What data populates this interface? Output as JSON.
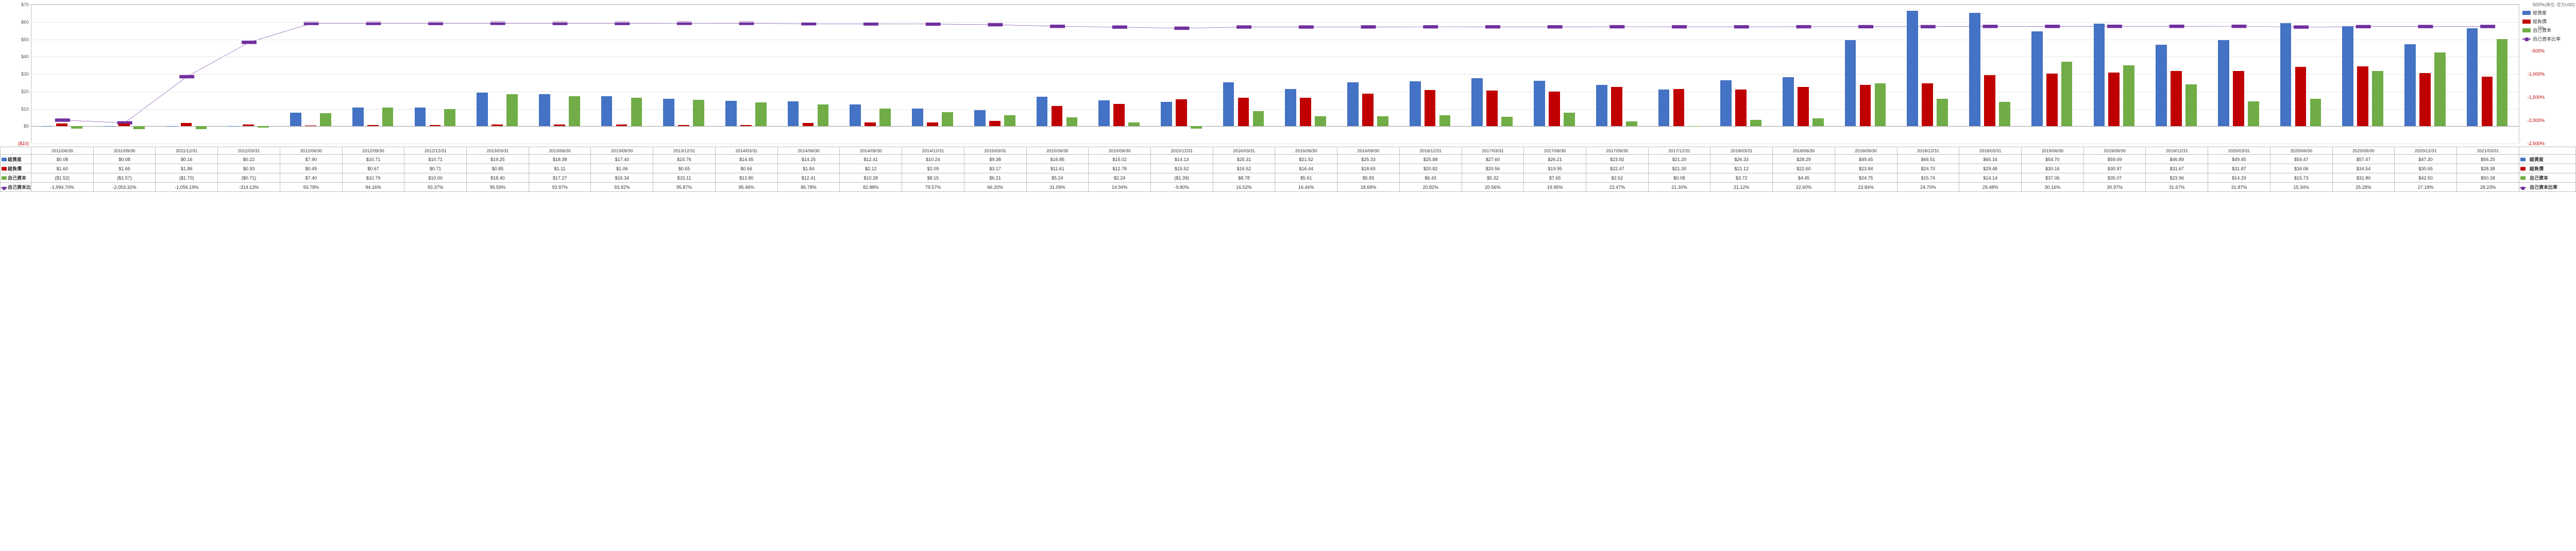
{
  "unit_note": "(単位: 百万USD)",
  "chart": {
    "type": "bar+line",
    "left_axis": {
      "label_prefix": "$",
      "min": -10,
      "max": 70,
      "step": 10,
      "ticks": [
        {
          "v": -10,
          "label": "($10)",
          "color": "#c00000"
        },
        {
          "v": 0,
          "label": "$0",
          "color": "#595959"
        },
        {
          "v": 10,
          "label": "$10",
          "color": "#595959"
        },
        {
          "v": 20,
          "label": "$20",
          "color": "#595959"
        },
        {
          "v": 30,
          "label": "$30",
          "color": "#595959"
        },
        {
          "v": 40,
          "label": "$40",
          "color": "#595959"
        },
        {
          "v": 50,
          "label": "$50",
          "color": "#595959"
        },
        {
          "v": 60,
          "label": "$60",
          "color": "#595959"
        },
        {
          "v": 70,
          "label": "$70",
          "color": "#595959"
        }
      ]
    },
    "right_axis": {
      "min": -2500,
      "max": 500,
      "step": 500,
      "ticks": [
        {
          "v": -2500,
          "label": "-2,500%",
          "color": "#c00000"
        },
        {
          "v": -2000,
          "label": "-2,000%",
          "color": "#c00000"
        },
        {
          "v": -1500,
          "label": "-1,500%",
          "color": "#c00000"
        },
        {
          "v": -1000,
          "label": "-1,000%",
          "color": "#c00000"
        },
        {
          "v": -500,
          "label": "-500%",
          "color": "#c00000"
        },
        {
          "v": 0,
          "label": "0%",
          "color": "#595959"
        },
        {
          "v": 500,
          "label": "500%",
          "color": "#595959"
        }
      ]
    },
    "background": "#ffffff",
    "grid_color": "#e6e6e6",
    "series_colors": {
      "total_assets": "#4472c4",
      "total_liabilities": "#c00000",
      "equity": "#70ad47",
      "equity_ratio": "#7030a0"
    },
    "series_labels": {
      "total_assets": "総資産",
      "total_liabilities": "総負債",
      "equity": "自己資本",
      "equity_ratio": "自己資本比率"
    },
    "categories": [
      "2011/06/30",
      "2011/09/30",
      "2011/12/31",
      "2012/03/31",
      "2012/06/30",
      "2012/09/30",
      "2012/12/31",
      "2013/03/31",
      "2013/06/30",
      "2013/09/30",
      "2013/12/31",
      "2014/03/31",
      "2014/06/30",
      "2014/09/30",
      "2014/12/31",
      "2015/03/31",
      "2015/06/30",
      "2015/09/30",
      "2015/12/31",
      "2016/03/31",
      "2016/06/30",
      "2016/09/30",
      "2016/12/31",
      "2017/03/31",
      "2017/06/30",
      "2017/09/30",
      "2017/12/31",
      "2018/03/31",
      "2018/06/30",
      "2018/09/30",
      "2018/12/31",
      "2019/03/31",
      "2019/06/30",
      "2019/09/30",
      "2019/12/31",
      "2020/03/31",
      "2020/06/30",
      "2020/09/30",
      "2020/12/31",
      "2021/03/31"
    ],
    "ratio_labels": [
      "-1,994.70%",
      "-2,053.32%",
      "-1,056.19%",
      "-314.13%",
      "93.78%",
      "94.16%",
      "93.37%",
      "95.59%",
      "93.97%",
      "93.92%",
      "95.87%",
      "95.46%",
      "86.78%",
      "82.88%",
      "79.57%",
      "66.20%",
      "31.09%",
      "14.94%",
      "-9.80%",
      "16.52%",
      "16.44%",
      "18.69%",
      "20.82%",
      "20.56%",
      "19.95%",
      "22.47%",
      "21.30%",
      "21.12%",
      "22.60%",
      "23.84%",
      "24.70%",
      "29.48%",
      "30.16%",
      "30.97%",
      "31.67%",
      "31.87%",
      "15.34%",
      "25.28%",
      "27.18%",
      "28.23%"
    ],
    "data": [
      {
        "asset": 0.08,
        "liab": 1.6,
        "equity": -1.52,
        "ratio": -1994.7
      },
      {
        "asset": 0.08,
        "liab": 1.65,
        "equity": -1.57,
        "ratio": -2053.32
      },
      {
        "asset": 0.16,
        "liab": 1.86,
        "equity": -1.7,
        "ratio": -1056.19
      },
      {
        "asset": 0.22,
        "liab": 0.93,
        "equity": -0.71,
        "ratio": -314.13
      },
      {
        "asset": 7.9,
        "liab": 0.49,
        "equity": 7.4,
        "ratio": 93.78
      },
      {
        "asset": 10.71,
        "liab": 0.67,
        "equity": 10.79,
        "ratio": 94.16
      },
      {
        "asset": 10.71,
        "liab": 0.71,
        "equity": 10.0,
        "ratio": 93.37
      },
      {
        "asset": 19.25,
        "liab": 0.85,
        "equity": 18.4,
        "ratio": 95.59
      },
      {
        "asset": 18.38,
        "liab": 1.11,
        "equity": 17.27,
        "ratio": 93.97
      },
      {
        "asset": 17.4,
        "liab": 1.06,
        "equity": 16.34,
        "ratio": 93.92
      },
      {
        "asset": 15.76,
        "liab": 0.65,
        "equity": 15.11,
        "ratio": 95.87
      },
      {
        "asset": 14.45,
        "liab": 0.66,
        "equity": 13.8,
        "ratio": 95.46
      },
      {
        "asset": 14.25,
        "liab": 1.84,
        "equity": 12.41,
        "ratio": 86.78
      },
      {
        "asset": 12.41,
        "liab": 2.12,
        "equity": 10.28,
        "ratio": 82.88
      },
      {
        "asset": 10.24,
        "liab": 2.09,
        "equity": 8.15,
        "ratio": 79.57
      },
      {
        "asset": 9.38,
        "liab": 3.17,
        "equity": 6.21,
        "ratio": 66.2
      },
      {
        "asset": 16.85,
        "liab": 11.61,
        "equity": 5.24,
        "ratio": 31.09
      },
      {
        "asset": 15.02,
        "liab": 12.78,
        "equity": 2.24,
        "ratio": 14.94
      },
      {
        "asset": 14.13,
        "liab": 15.52,
        "equity": -1.39,
        "ratio": -9.8
      },
      {
        "asset": 25.31,
        "liab": 16.52,
        "equity": 8.78,
        "ratio": 16.52
      },
      {
        "asset": 21.52,
        "liab": 16.44,
        "equity": 5.61,
        "ratio": 16.44
      },
      {
        "asset": 25.33,
        "liab": 18.69,
        "equity": 5.83,
        "ratio": 18.69
      },
      {
        "asset": 25.88,
        "liab": 20.82,
        "equity": 6.43,
        "ratio": 20.82
      },
      {
        "asset": 27.6,
        "liab": 20.56,
        "equity": 5.32,
        "ratio": 20.56
      },
      {
        "asset": 26.21,
        "liab": 19.95,
        "equity": 7.65,
        "ratio": 19.95
      },
      {
        "asset": 23.92,
        "liab": 22.47,
        "equity": 2.62,
        "ratio": 22.47
      },
      {
        "asset": 21.2,
        "liab": 21.3,
        "equity": 0.08,
        "ratio": 21.3
      },
      {
        "asset": 26.33,
        "liab": 21.12,
        "equity": 3.72,
        "ratio": 21.12
      },
      {
        "asset": 28.29,
        "liab": 22.6,
        "equity": 4.45,
        "ratio": 22.6
      },
      {
        "asset": 49.45,
        "liab": 23.84,
        "equity": 24.75,
        "ratio": 23.84
      },
      {
        "asset": 66.51,
        "liab": 24.7,
        "equity": 15.74,
        "ratio": 24.7
      },
      {
        "asset": 65.16,
        "liab": 29.48,
        "equity": 14.14,
        "ratio": 29.48
      },
      {
        "asset": 54.7,
        "liab": 30.16,
        "equity": 37.06,
        "ratio": 30.16
      },
      {
        "asset": 59.09,
        "liab": 30.97,
        "equity": 35.07,
        "ratio": 30.97
      },
      {
        "asset": 46.89,
        "liab": 31.67,
        "equity": 23.96,
        "ratio": 31.67
      },
      {
        "asset": 49.45,
        "liab": 31.87,
        "equity": 14.29,
        "ratio": 31.87
      },
      {
        "asset": 59.47,
        "liab": 34.06,
        "equity": 15.73,
        "ratio": 15.34
      },
      {
        "asset": 57.47,
        "liab": 34.54,
        "equity": 31.8,
        "ratio": 25.28
      },
      {
        "asset": 47.3,
        "liab": 30.65,
        "equity": 42.5,
        "ratio": 27.18
      },
      {
        "asset": 56.25,
        "liab": 28.38,
        "equity": 50.18,
        "ratio": 28.23
      }
    ]
  },
  "table": {
    "row_labels": {
      "categories": "",
      "total_assets": "総資産",
      "total_liabilities": "総負債",
      "equity": "自己資本",
      "equity_ratio": "自己資本比率"
    },
    "asset_labels": [
      "$0.08",
      "$0.08",
      "$0.16",
      "$0.22",
      "$7.90",
      "$10.71",
      "$10.71",
      "$19.25",
      "$18.38",
      "$17.40",
      "$15.76",
      "$14.45",
      "$14.25",
      "$12.41",
      "$10.24",
      "$9.38",
      "$16.85",
      "$15.02",
      "$14.13",
      "$25.31",
      "$21.52",
      "$25.33",
      "$25.88",
      "$27.60",
      "$26.21",
      "$23.92",
      "$21.20",
      "$26.33",
      "$28.29",
      "$49.45",
      "$66.51",
      "$65.16",
      "$54.70",
      "$59.09",
      "$46.89",
      "$49.45",
      "$59.47",
      "$57.47",
      "$47.30",
      "$56.25"
    ],
    "liab_labels": [
      "$1.60",
      "$1.65",
      "$1.86",
      "$0.93",
      "$0.49",
      "$0.67",
      "$0.71",
      "$0.85",
      "$1.11",
      "$1.06",
      "$0.65",
      "$0.66",
      "$1.84",
      "$2.12",
      "$2.09",
      "$3.17",
      "$11.61",
      "$12.78",
      "$15.52",
      "$16.52",
      "$16.44",
      "$18.69",
      "$20.82",
      "$20.56",
      "$19.95",
      "$22.47",
      "$21.30",
      "$21.12",
      "$22.60",
      "$23.84",
      "$24.70",
      "$29.48",
      "$30.16",
      "$30.97",
      "$31.67",
      "$31.87",
      "$34.06",
      "$34.54",
      "$30.65",
      "$28.38"
    ],
    "equity_labels": [
      "($1.52)",
      "($1.57)",
      "($1.70)",
      "($0.71)",
      "$7.40",
      "$10.79",
      "$10.00",
      "$18.40",
      "$17.27",
      "$16.34",
      "$15.11",
      "$13.80",
      "$12.41",
      "$10.28",
      "$8.15",
      "$6.21",
      "$5.24",
      "$2.24",
      "($1.39)",
      "$8.78",
      "$5.61",
      "$5.83",
      "$6.43",
      "$5.32",
      "$7.65",
      "$2.62",
      "$0.08",
      "$3.72",
      "$4.45",
      "$24.75",
      "$15.74",
      "$14.14",
      "$37.06",
      "$35.07",
      "$23.96",
      "$14.29",
      "$15.73",
      "$31.80",
      "$42.50",
      "$50.18"
    ]
  }
}
